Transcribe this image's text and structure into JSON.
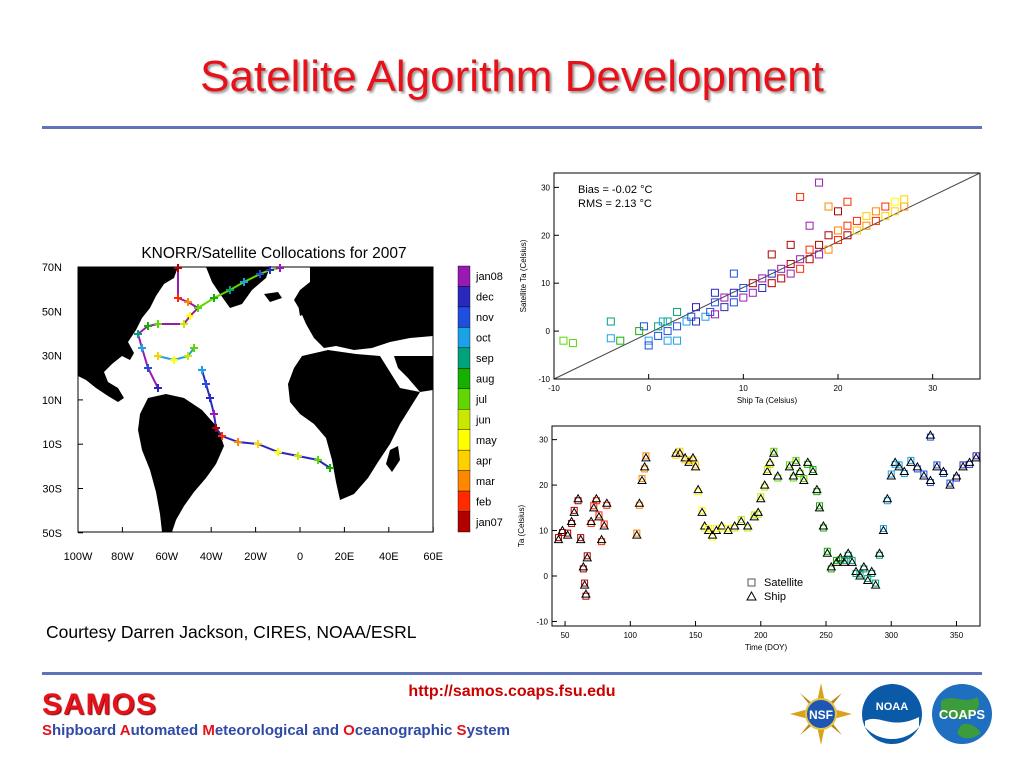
{
  "slide": {
    "title": "Satellite Algorithm Development",
    "caption": "Courtesy Darren Jackson, CIRES, NOAA/ESRL",
    "url": "http://samos.coaps.fsu.edu"
  },
  "footer": {
    "logo_text": "SAMOS",
    "subtitle_parts": [
      {
        "text": "S",
        "red": true
      },
      {
        "text": "hipboard ",
        "red": false
      },
      {
        "text": "A",
        "red": true
      },
      {
        "text": "utomated ",
        "red": false
      },
      {
        "text": "M",
        "red": true
      },
      {
        "text": "eteorological and ",
        "red": false
      },
      {
        "text": "O",
        "red": true
      },
      {
        "text": "ceanographic ",
        "red": false
      },
      {
        "text": "S",
        "red": true
      },
      {
        "text": "ystem",
        "red": false
      }
    ],
    "logos": [
      {
        "name": "nsf-logo",
        "text": "NSF"
      },
      {
        "name": "noaa-logo",
        "text": "NOAA"
      },
      {
        "name": "coaps-logo",
        "text": "COAPS"
      }
    ]
  },
  "colors": {
    "title": "#e8111a",
    "rule": "#5f73b8",
    "url": "#cc0000",
    "month_scale": [
      "#b00000",
      "#ff2a00",
      "#ff8800",
      "#ffd000",
      "#ffff00",
      "#c8e800",
      "#5ed800",
      "#16b000",
      "#00a37a",
      "#1aa2e6",
      "#1f4fe0",
      "#2b28c0",
      "#9a19b4"
    ]
  },
  "map": {
    "title": "KNORR/Satellite Collocations for 2007",
    "lat_labels": [
      "70N",
      "50N",
      "30N",
      "10N",
      "10S",
      "30S",
      "50S"
    ],
    "lon_labels": [
      "100W",
      "80W",
      "60W",
      "40W",
      "20W",
      "0",
      "20E",
      "40E",
      "60E"
    ],
    "colorbar_labels": [
      "jan08",
      "dec",
      "nov",
      "oct",
      "sep",
      "aug",
      "jul",
      "jun",
      "may",
      "apr",
      "mar",
      "feb",
      "jan07"
    ]
  },
  "chart_data": [
    {
      "type": "scatter",
      "xlabel": "Ship Ta (Celsius)",
      "ylabel": "Satellite Ta (Celsius)",
      "xlim": [
        -10,
        35
      ],
      "ylim": [
        -10,
        33
      ],
      "xticks": [
        "-10",
        "0",
        "10",
        "20",
        "30"
      ],
      "yticks": [
        "-10",
        "0",
        "10",
        "20",
        "30"
      ],
      "annotation": [
        "Bias =   -0.02 °C",
        "RMS =    2.13 °C"
      ],
      "reference_line": "1:1",
      "series": [
        {
          "values": [
            [
              -8,
              -2.5
            ],
            [
              -9,
              -2
            ],
            [
              -4,
              -1.5
            ],
            [
              -3,
              -2
            ],
            [
              -4,
              2
            ],
            [
              -0.5,
              1
            ],
            [
              -1,
              0
            ],
            [
              0,
              -2
            ],
            [
              1,
              -1
            ],
            [
              1,
              1
            ],
            [
              1.5,
              2
            ],
            [
              2,
              0
            ],
            [
              2,
              2
            ],
            [
              3,
              -2
            ],
            [
              3,
              1
            ],
            [
              4,
              2
            ],
            [
              4.5,
              3
            ],
            [
              5,
              2
            ],
            [
              6,
              3
            ],
            [
              6.5,
              4
            ],
            [
              7,
              3.5
            ],
            [
              7,
              6
            ],
            [
              8,
              5
            ],
            [
              8,
              7
            ],
            [
              9,
              6
            ],
            [
              9,
              8
            ],
            [
              10,
              7
            ],
            [
              10,
              9
            ],
            [
              11,
              8
            ],
            [
              11,
              10
            ],
            [
              12,
              9
            ],
            [
              12,
              11
            ],
            [
              13,
              10
            ],
            [
              13,
              12
            ],
            [
              14,
              13
            ],
            [
              14,
              11
            ],
            [
              15,
              12
            ],
            [
              15,
              14
            ],
            [
              16,
              13
            ],
            [
              16,
              15
            ],
            [
              17,
              15
            ],
            [
              17,
              17
            ],
            [
              18,
              16
            ],
            [
              18,
              18
            ],
            [
              19,
              17
            ],
            [
              19,
              20
            ],
            [
              20,
              19
            ],
            [
              20,
              21
            ],
            [
              21,
              20
            ],
            [
              21,
              22
            ],
            [
              22,
              21
            ],
            [
              22,
              23
            ],
            [
              23,
              22
            ],
            [
              23,
              24
            ],
            [
              24,
              23
            ],
            [
              24,
              25
            ],
            [
              25,
              24
            ],
            [
              25,
              26
            ],
            [
              26,
              25
            ],
            [
              26,
              27
            ],
            [
              27,
              26
            ],
            [
              27,
              27.5
            ],
            [
              19,
              26
            ],
            [
              20,
              25
            ],
            [
              21,
              27
            ],
            [
              16,
              28
            ],
            [
              17,
              22
            ],
            [
              15,
              18
            ],
            [
              13,
              16
            ],
            [
              9,
              12
            ],
            [
              7,
              8
            ],
            [
              5,
              5
            ],
            [
              3,
              4
            ],
            [
              2,
              -2
            ],
            [
              0,
              -3
            ],
            [
              18,
              31
            ]
          ]
        }
      ]
    },
    {
      "type": "scatter",
      "xlabel": "Time (DOY)",
      "ylabel": "Ta (Celsius)",
      "xlim": [
        40,
        368
      ],
      "ylim": [
        -11,
        33
      ],
      "xticks": [
        "50",
        "100",
        "150",
        "200",
        "250",
        "300",
        "350"
      ],
      "yticks": [
        "-10",
        "0",
        "10",
        "20",
        "30"
      ],
      "series": [
        {
          "name": "Satellite",
          "marker": "square"
        },
        {
          "name": "Ship",
          "marker": "triangle"
        }
      ],
      "points": [
        [
          45,
          8
        ],
        [
          48,
          10
        ],
        [
          52,
          9
        ],
        [
          55,
          12
        ],
        [
          57,
          14
        ],
        [
          60,
          17
        ],
        [
          62,
          8
        ],
        [
          64,
          2
        ],
        [
          65,
          -2
        ],
        [
          66,
          -4
        ],
        [
          67,
          4
        ],
        [
          70,
          12
        ],
        [
          72,
          15
        ],
        [
          74,
          17
        ],
        [
          76,
          13
        ],
        [
          78,
          8
        ],
        [
          80,
          11
        ],
        [
          82,
          16
        ],
        [
          105,
          9
        ],
        [
          107,
          16
        ],
        [
          109,
          21
        ],
        [
          111,
          24
        ],
        [
          112,
          26
        ],
        [
          135,
          27
        ],
        [
          138,
          27
        ],
        [
          142,
          26
        ],
        [
          145,
          25
        ],
        [
          148,
          26
        ],
        [
          150,
          24
        ],
        [
          152,
          19
        ],
        [
          155,
          14
        ],
        [
          157,
          11
        ],
        [
          160,
          10
        ],
        [
          163,
          9
        ],
        [
          166,
          10
        ],
        [
          170,
          11
        ],
        [
          175,
          10
        ],
        [
          180,
          11
        ],
        [
          185,
          12
        ],
        [
          190,
          11
        ],
        [
          195,
          13
        ],
        [
          198,
          14
        ],
        [
          200,
          17
        ],
        [
          203,
          20
        ],
        [
          205,
          23
        ],
        [
          207,
          25
        ],
        [
          210,
          27
        ],
        [
          213,
          22
        ],
        [
          222,
          24
        ],
        [
          225,
          22
        ],
        [
          227,
          25
        ],
        [
          230,
          23
        ],
        [
          233,
          21
        ],
        [
          236,
          25
        ],
        [
          240,
          23
        ],
        [
          243,
          19
        ],
        [
          245,
          15
        ],
        [
          248,
          11
        ],
        [
          251,
          5
        ],
        [
          254,
          2
        ],
        [
          258,
          3
        ],
        [
          261,
          4
        ],
        [
          264,
          3
        ],
        [
          267,
          5
        ],
        [
          270,
          3
        ],
        [
          273,
          1
        ],
        [
          276,
          0
        ],
        [
          279,
          2
        ],
        [
          282,
          -1
        ],
        [
          285,
          1
        ],
        [
          288,
          -2
        ],
        [
          291,
          5
        ],
        [
          294,
          10
        ],
        [
          297,
          17
        ],
        [
          300,
          22
        ],
        [
          303,
          25
        ],
        [
          306,
          24
        ],
        [
          310,
          23
        ],
        [
          315,
          25
        ],
        [
          320,
          24
        ],
        [
          325,
          22
        ],
        [
          330,
          21
        ],
        [
          335,
          24
        ],
        [
          340,
          23
        ],
        [
          345,
          20
        ],
        [
          350,
          22
        ],
        [
          355,
          24
        ],
        [
          360,
          25
        ],
        [
          365,
          26
        ],
        [
          330,
          31
        ]
      ]
    }
  ]
}
